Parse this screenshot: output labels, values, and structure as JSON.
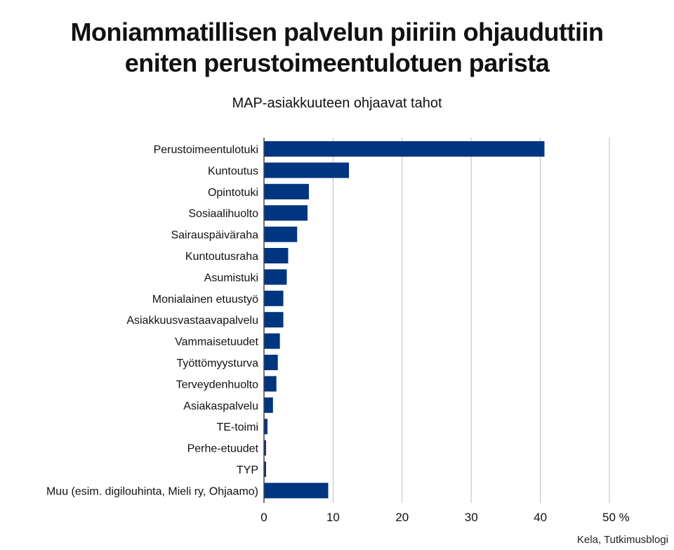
{
  "title_line1": "Moniammatillisen palvelun piiriin ohjauduttiin",
  "title_line2": "eniten perustoimeentulotuen parista",
  "subtitle": "MAP-asiakkuuteen ohjaavat tahot",
  "source": "Kela, Tutkimusblogi",
  "chart_data": {
    "type": "bar",
    "orientation": "horizontal",
    "title": "Moniammatillisen palvelun piiriin ohjauduttiin eniten perustoimeentulotuen parista",
    "subtitle": "MAP-asiakkuuteen ohjaavat tahot",
    "xlabel": "",
    "ylabel": "",
    "xlim": [
      0,
      50
    ],
    "x_ticks": [
      0,
      10,
      20,
      30,
      40,
      50
    ],
    "x_tick_labels": [
      "0",
      "10",
      "20",
      "30",
      "40",
      "50 %"
    ],
    "grid": "vertical",
    "bar_color": "#003580",
    "categories": [
      "Perustoimeentulotuki",
      "Kuntoutus",
      "Opintotuki",
      "Sosiaalihuolto",
      "Sairauspäiväraha",
      "Kuntoutusraha",
      "Asumistuki",
      "Monialainen etuustyö",
      "Asiakkuusvastaavapalvelu",
      "Vammaisetuudet",
      "Työttömyysturva",
      "Terveydenhuolto",
      "Asiakaspalvelu",
      "TE-toimi",
      "Perhe-etuudet",
      "TYP",
      "Muu (esim. digilouhinta, Mieli ry, Ohjaamo)"
    ],
    "values": [
      40.6,
      12.3,
      6.5,
      6.3,
      4.8,
      3.5,
      3.3,
      2.8,
      2.8,
      2.3,
      2.0,
      1.8,
      1.3,
      0.5,
      0.3,
      0.3,
      9.3
    ]
  }
}
